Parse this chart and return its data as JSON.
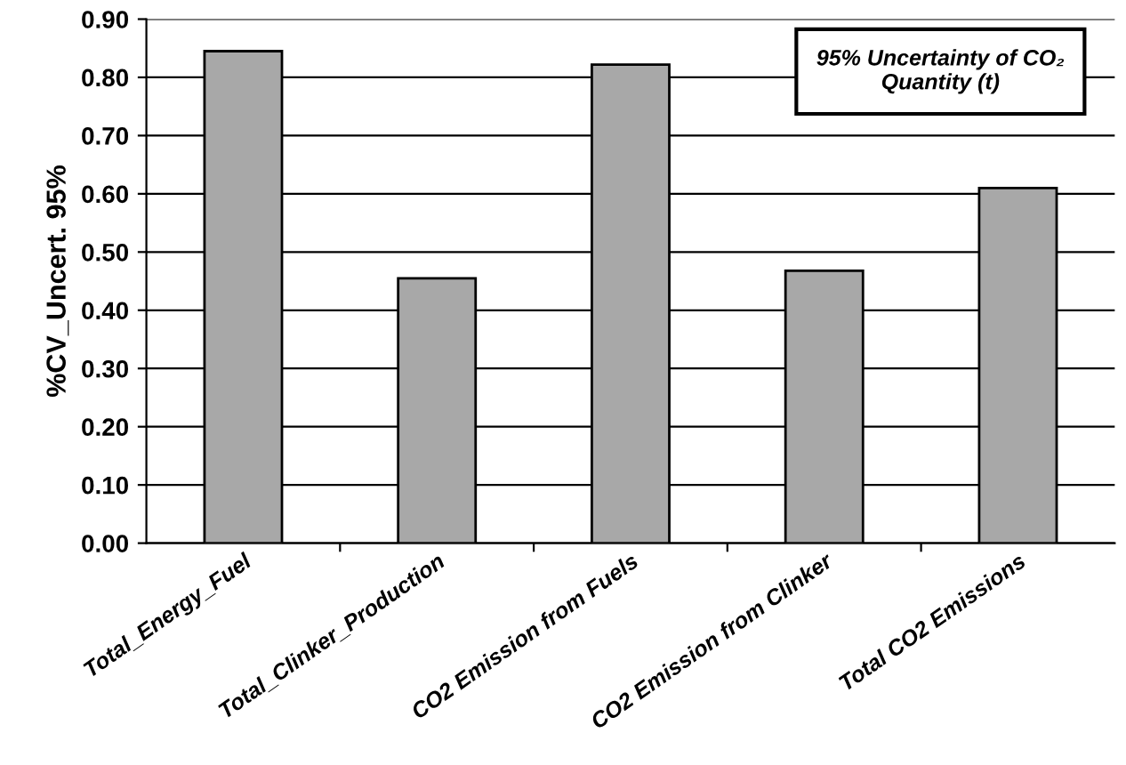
{
  "chart_data": {
    "type": "bar",
    "categories": [
      "Total_Energy_Fuel",
      "Total_Clinker_Production",
      "CO2 Emission from Fuels",
      "CO2 Emission from Clinker",
      "Total CO2 Emissions"
    ],
    "values": [
      0.845,
      0.455,
      0.822,
      0.468,
      0.61
    ],
    "color": "#a8a8a8",
    "ylabel": "%CV_Uncert. 95%",
    "annotations": [
      "95% Uncertainty of CO₂\nQuantity (t)"
    ],
    "ylim": [
      0,
      0.9
    ],
    "yticks": [
      {
        "value": 0,
        "label": "0.00"
      },
      {
        "value": 0.1,
        "label": "0.10"
      },
      {
        "value": 0.2,
        "label": "0.20"
      },
      {
        "value": 0.3,
        "label": "0.30"
      },
      {
        "value": 0.4,
        "label": "0.40"
      },
      {
        "value": 0.5,
        "label": "0.50"
      },
      {
        "value": 0.6,
        "label": "0.60"
      },
      {
        "value": 0.7,
        "label": "0.70"
      },
      {
        "value": 0.8,
        "label": "0.80"
      },
      {
        "value": 0.9,
        "label": "0.90"
      }
    ],
    "grid": "y"
  }
}
